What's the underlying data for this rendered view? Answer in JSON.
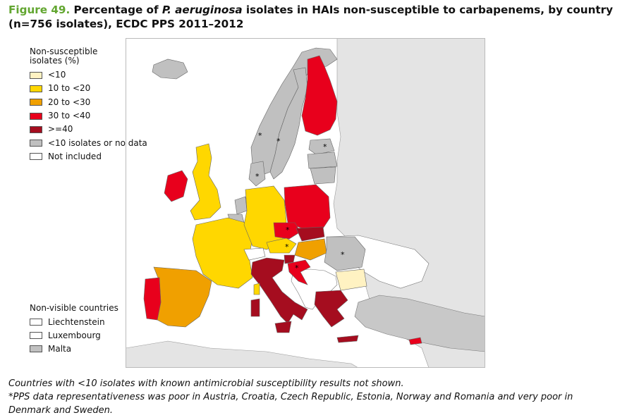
{
  "title": {
    "figure_label": "Figure 49.",
    "part1": "Percentage of",
    "organism": "P. aeruginosa",
    "part2": "isolates in HAIs non-susceptible to carbapenems, by country",
    "line2": "(n=756 isolates), ECDC PPS 2011–2012"
  },
  "legend": {
    "heading_line1": "Non-susceptible",
    "heading_line2": "isolates (%)",
    "items": [
      {
        "label": "<10",
        "color": "#fff2c2"
      },
      {
        "label": "10 to <20",
        "color": "#ffd700"
      },
      {
        "label": "20 to <30",
        "color": "#f0a000"
      },
      {
        "label": "30 to <40",
        "color": "#e8001c"
      },
      {
        "label": ">=40",
        "color": "#a50d1f"
      },
      {
        "label": "<10 isolates or no data",
        "color": "#c0c0c0"
      },
      {
        "label": "Not included",
        "color": "#ffffff"
      }
    ]
  },
  "non_visible": {
    "heading": "Non-visible countries",
    "items": [
      {
        "label": "Liechtenstein",
        "color": "#ffffff"
      },
      {
        "label": "Luxembourg",
        "color": "#ffffff"
      },
      {
        "label": "Malta",
        "color": "#c0c0c0"
      }
    ]
  },
  "map": {
    "sea_color": "#ffffff",
    "outside_color": "#e4e4e4",
    "asterisk": "*",
    "countries": [
      {
        "name": "Finland",
        "category": "30 to <40",
        "color": "#e8001c"
      },
      {
        "name": "Ireland",
        "category": "30 to <40",
        "color": "#e8001c"
      },
      {
        "name": "Poland",
        "category": "30 to <40",
        "color": "#e8001c"
      },
      {
        "name": "Czech Republic",
        "category": "30 to <40",
        "color": "#e8001c",
        "poor_representativeness": true
      },
      {
        "name": "Croatia",
        "category": "30 to <40",
        "color": "#e8001c",
        "poor_representativeness": true
      },
      {
        "name": "Portugal",
        "category": "30 to <40",
        "color": "#e8001c"
      },
      {
        "name": "United Kingdom",
        "category": "10 to <20",
        "color": "#ffd700"
      },
      {
        "name": "France",
        "category": "10 to <20",
        "color": "#ffd700"
      },
      {
        "name": "Germany",
        "category": "10 to <20",
        "color": "#ffd700"
      },
      {
        "name": "Austria",
        "category": "10 to <20",
        "color": "#ffd700",
        "poor_representativeness": true
      },
      {
        "name": "Spain",
        "category": "20 to <30",
        "color": "#f0a000"
      },
      {
        "name": "Hungary",
        "category": "20 to <30",
        "color": "#f0a000"
      },
      {
        "name": "Italy",
        "category": ">=40",
        "color": "#a50d1f"
      },
      {
        "name": "Greece",
        "category": ">=40",
        "color": "#a50d1f"
      },
      {
        "name": "Slovakia",
        "category": ">=40",
        "color": "#a50d1f"
      },
      {
        "name": "Slovenia",
        "category": ">=40",
        "color": "#a50d1f"
      },
      {
        "name": "Bulgaria",
        "category": "<10",
        "color": "#fff2c2"
      },
      {
        "name": "Norway",
        "category": "<10 isolates or no data",
        "color": "#c0c0c0",
        "poor_representativeness": true
      },
      {
        "name": "Sweden",
        "category": "<10 isolates or no data",
        "color": "#c0c0c0",
        "poor_representativeness": true
      },
      {
        "name": "Denmark",
        "category": "<10 isolates or no data",
        "color": "#c0c0c0",
        "poor_representativeness": true
      },
      {
        "name": "Estonia",
        "category": "<10 isolates or no data",
        "color": "#c0c0c0",
        "poor_representativeness": true
      },
      {
        "name": "Romania",
        "category": "<10 isolates or no data",
        "color": "#c0c0c0",
        "poor_representativeness": true
      },
      {
        "name": "Iceland",
        "category": "<10 isolates or no data",
        "color": "#c0c0c0"
      },
      {
        "name": "Latvia",
        "category": "<10 isolates or no data",
        "color": "#c0c0c0"
      },
      {
        "name": "Lithuania",
        "category": "<10 isolates or no data",
        "color": "#c0c0c0"
      },
      {
        "name": "Netherlands",
        "category": "<10 isolates or no data",
        "color": "#c0c0c0"
      },
      {
        "name": "Belgium",
        "category": "<10 isolates or no data",
        "color": "#c0c0c0"
      },
      {
        "name": "Cyprus",
        "category": "30 to <40",
        "color": "#e8001c"
      }
    ]
  },
  "notes": {
    "line1": "Countries with <10 isolates with known antimicrobial susceptibility results not shown.",
    "line2": "*PPS data representativeness was poor in Austria, Croatia, Czech Republic, Estonia, Norway and Romania and very poor in",
    "line3": "Denmark and Sweden."
  }
}
